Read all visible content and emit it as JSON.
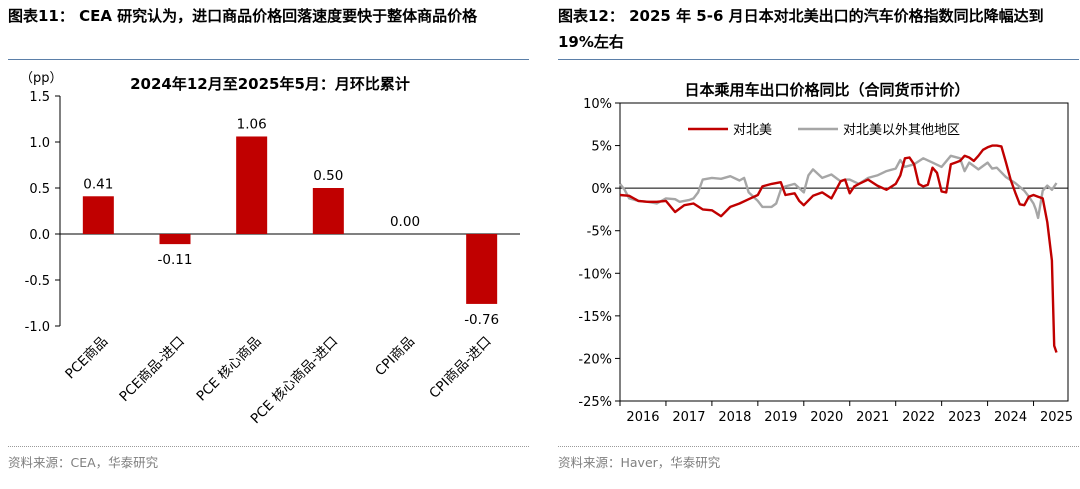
{
  "left_panel": {
    "header": "图表11： CEA 研究认为，进口商品价格回落速度要快于整体商品价格",
    "source": "资料来源：CEA，华泰研究"
  },
  "right_panel": {
    "header_line1": "图表12： 2025 年 5-6 月日本对北美出口的汽车价格指数同比降幅达到",
    "header_line2": "19%左右",
    "source": "资料来源：Haver，华泰研究"
  },
  "colors": {
    "bar": "#c00000",
    "line_na": "#c00000",
    "line_other": "#a6a6a6"
  },
  "chart_data": [
    {
      "type": "bar",
      "title": "2024年12月至2025年5月：月环比累计",
      "ylabel": "（pp）",
      "ylim": [
        -1.0,
        1.5
      ],
      "yticks": [
        1.5,
        1.0,
        0.5,
        0.0,
        -0.5,
        -1.0
      ],
      "ytick_labels": [
        "1.5",
        "1.0",
        "0.5",
        "0.0",
        "-0.5",
        "-1.0"
      ],
      "categories": [
        "PCE商品",
        "PCE商品-进口",
        "PCE 核心商品",
        "PCE 核心商品-进口",
        "CPI商品",
        "CPI商品-进口"
      ],
      "values": [
        0.41,
        -0.11,
        1.06,
        0.5,
        0.0,
        -0.76
      ],
      "value_labels": [
        "0.41",
        "-0.11",
        "1.06",
        "0.50",
        "0.00",
        "-0.76"
      ]
    },
    {
      "type": "line",
      "title": "日本乘用车出口价格同比（合同货币计价）",
      "ylim": [
        -25,
        10
      ],
      "yticks": [
        10,
        5,
        0,
        -5,
        -10,
        -15,
        -20,
        -25
      ],
      "ytick_labels": [
        "10%",
        "5%",
        "0%",
        "-5%",
        "-10%",
        "-15%",
        "-20%",
        "-25%"
      ],
      "xlim": [
        2016.0,
        2025.75
      ],
      "xticks": [
        2016,
        2017,
        2018,
        2019,
        2020,
        2021,
        2022,
        2023,
        2024,
        2025
      ],
      "xtick_labels": [
        "2016",
        "2017",
        "2018",
        "2019",
        "2020",
        "2021",
        "2022",
        "2023",
        "2024",
        "2025"
      ],
      "series": [
        {
          "name": "对北美",
          "x": [
            2016.0,
            2016.2,
            2016.4,
            2016.6,
            2016.8,
            2017.0,
            2017.2,
            2017.4,
            2017.6,
            2017.8,
            2018.0,
            2018.2,
            2018.4,
            2018.6,
            2018.8,
            2019.0,
            2019.1,
            2019.3,
            2019.5,
            2019.6,
            2019.8,
            2019.9,
            2020.0,
            2020.2,
            2020.4,
            2020.6,
            2020.8,
            2020.9,
            2021.0,
            2021.1,
            2021.2,
            2021.4,
            2021.6,
            2021.8,
            2022.0,
            2022.1,
            2022.2,
            2022.3,
            2022.4,
            2022.5,
            2022.6,
            2022.7,
            2022.8,
            2022.9,
            2023.0,
            2023.1,
            2023.2,
            2023.3,
            2023.4,
            2023.5,
            2023.6,
            2023.7,
            2023.8,
            2023.9,
            2024.0,
            2024.1,
            2024.2,
            2024.3,
            2024.4,
            2024.5,
            2024.6,
            2024.7,
            2024.8,
            2024.9,
            2025.0,
            2025.1,
            2025.2,
            2025.3,
            2025.4,
            2025.45,
            2025.5
          ],
          "values": [
            -0.8,
            -0.9,
            -1.5,
            -1.6,
            -1.6,
            -1.5,
            -2.8,
            -2.0,
            -1.8,
            -2.5,
            -2.6,
            -3.3,
            -2.2,
            -1.8,
            -1.3,
            -0.8,
            0.2,
            0.5,
            0.7,
            -0.8,
            -0.6,
            -1.5,
            -2.0,
            -0.9,
            -0.5,
            -1.2,
            0.8,
            1.0,
            -0.6,
            0.2,
            0.5,
            1.0,
            0.3,
            -0.2,
            0.5,
            1.5,
            3.5,
            3.6,
            2.8,
            0.5,
            0.2,
            0.4,
            2.4,
            1.8,
            -0.4,
            -0.5,
            2.8,
            3.0,
            3.2,
            3.8,
            3.6,
            3.2,
            3.8,
            4.5,
            4.8,
            5.0,
            5.0,
            4.9,
            3.0,
            1.0,
            -0.5,
            -1.9,
            -2.0,
            -1.0,
            -0.8,
            -1.0,
            -1.2,
            -4.0,
            -8.5,
            -18.5,
            -19.3
          ]
        },
        {
          "name": "对北美以外其他地区",
          "x": [
            2016.0,
            2016.1,
            2016.2,
            2016.4,
            2016.6,
            2016.8,
            2017.0,
            2017.2,
            2017.3,
            2017.5,
            2017.6,
            2017.7,
            2017.8,
            2018.0,
            2018.2,
            2018.4,
            2018.6,
            2018.7,
            2018.8,
            2019.0,
            2019.1,
            2019.3,
            2019.4,
            2019.5,
            2019.6,
            2019.8,
            2020.0,
            2020.1,
            2020.2,
            2020.4,
            2020.6,
            2020.8,
            2020.9,
            2021.0,
            2021.2,
            2021.4,
            2021.6,
            2021.8,
            2022.0,
            2022.1,
            2022.2,
            2022.4,
            2022.6,
            2022.8,
            2023.0,
            2023.2,
            2023.4,
            2023.5,
            2023.6,
            2023.8,
            2024.0,
            2024.1,
            2024.2,
            2024.4,
            2024.6,
            2024.8,
            2024.9,
            2025.0,
            2025.05,
            2025.1,
            2025.2,
            2025.3,
            2025.4,
            2025.5
          ],
          "values": [
            0.5,
            -0.2,
            -1.2,
            -1.5,
            -1.6,
            -1.8,
            -1.2,
            -1.3,
            -1.6,
            -1.4,
            -1.2,
            -0.5,
            1.0,
            1.2,
            1.1,
            1.4,
            0.9,
            1.2,
            -0.5,
            -1.5,
            -2.2,
            -2.2,
            -1.8,
            -0.2,
            0.2,
            0.5,
            -0.5,
            1.5,
            2.2,
            1.2,
            1.6,
            0.8,
            1.0,
            1.0,
            0.5,
            1.2,
            1.5,
            2.0,
            2.3,
            3.3,
            2.5,
            2.8,
            3.5,
            3.0,
            2.5,
            3.8,
            3.5,
            2.0,
            3.0,
            2.2,
            3.0,
            2.3,
            2.4,
            1.3,
            0.6,
            -0.3,
            -1.0,
            -1.8,
            -2.5,
            -3.5,
            -0.3,
            0.3,
            -0.2,
            0.6
          ]
        }
      ]
    }
  ]
}
